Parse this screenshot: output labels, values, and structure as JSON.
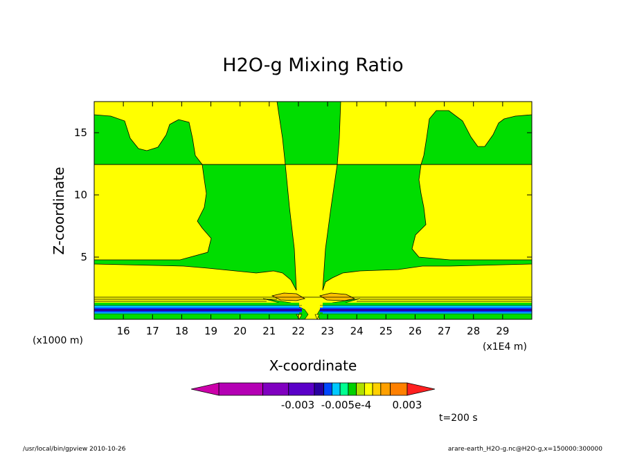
{
  "chart_data": {
    "type": "heatmap",
    "title": "H2O-g Mixing Ratio",
    "xlabel": "X-coordinate",
    "ylabel": "Z-coordinate",
    "x_unit_left": "(x1000 m)",
    "x_unit_right": "(x1E4 m)",
    "x_ticks": [
      "16",
      "17",
      "18",
      "19",
      "20",
      "21",
      "22",
      "23",
      "24",
      "25",
      "26",
      "27",
      "28",
      "29"
    ],
    "y_ticks": [
      "5",
      "10",
      "15"
    ],
    "xlim": [
      15,
      30
    ],
    "ylim": [
      0,
      17.5
    ],
    "colorbar_labels": [
      "-0.003",
      "-0.005e-4",
      "0.003"
    ],
    "colorbar_colors": [
      "#cc00aa",
      "#b400b4",
      "#8000c0",
      "#5a00c8",
      "#2800a0",
      "#0048ff",
      "#00c8ff",
      "#00ff90",
      "#00d000",
      "#b0e000",
      "#ffff00",
      "#ffd000",
      "#ffa000",
      "#ff8000",
      "#ff2020"
    ],
    "time_label": "t=200 s",
    "colors": {
      "yellow": "#ffff00",
      "green": "#00dd00",
      "orange": "#ffc000"
    }
  },
  "footer": {
    "left": "/usr/local/bin/gpview  2010-10-26",
    "right": "arare-earth_H2O-g.nc@H2O-g,x=150000:300000"
  }
}
